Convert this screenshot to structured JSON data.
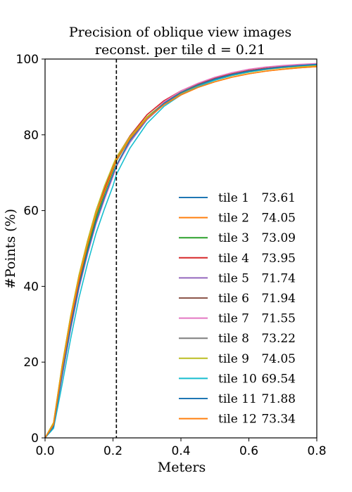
{
  "chart_data": {
    "type": "line",
    "title_line1": "Precision of oblique view images",
    "title_line2": "reconst. per tile d = 0.21",
    "xlabel": "Meters",
    "ylabel": "#Points (%)",
    "xlim": [
      0.0,
      0.8
    ],
    "ylim": [
      0,
      100
    ],
    "x_ticks": [
      {
        "value": 0.0,
        "label": "0.0"
      },
      {
        "value": 0.2,
        "label": "0.2"
      },
      {
        "value": 0.4,
        "label": "0.4"
      },
      {
        "value": 0.6,
        "label": "0.6"
      },
      {
        "value": 0.8,
        "label": "0.8"
      }
    ],
    "y_ticks": [
      {
        "value": 0,
        "label": "0"
      },
      {
        "value": 20,
        "label": "20"
      },
      {
        "value": 40,
        "label": "40"
      },
      {
        "value": 60,
        "label": "60"
      },
      {
        "value": 80,
        "label": "80"
      },
      {
        "value": 100,
        "label": "100"
      }
    ],
    "threshold_x": 0.21,
    "grid": false,
    "legend_position": "lower-right",
    "x": [
      0.0,
      0.025,
      0.05,
      0.075,
      0.1,
      0.125,
      0.15,
      0.175,
      0.2,
      0.21,
      0.25,
      0.3,
      0.35,
      0.4,
      0.45,
      0.5,
      0.55,
      0.6,
      0.65,
      0.7,
      0.75,
      0.8
    ],
    "series": [
      {
        "name": "tile 1",
        "score": "73.61",
        "color": "#1f77b4",
        "values": [
          0,
          3,
          17,
          30,
          41,
          50,
          58,
          65,
          71,
          73.61,
          79,
          84.5,
          88.3,
          91,
          93,
          94.6,
          95.8,
          96.7,
          97.3,
          97.8,
          98.1,
          98.4
        ]
      },
      {
        "name": "tile 2",
        "score": "74.05",
        "color": "#ff7f0e",
        "values": [
          0,
          4,
          19,
          32,
          43,
          52,
          60,
          66,
          72,
          74.05,
          79.5,
          84.5,
          88,
          90.5,
          92.5,
          94,
          95.2,
          96.1,
          96.8,
          97.3,
          97.7,
          98.0
        ]
      },
      {
        "name": "tile 3",
        "score": "73.09",
        "color": "#2ca02c",
        "values": [
          0,
          3,
          17,
          30,
          41,
          50,
          58,
          64.5,
          70.5,
          73.09,
          79,
          84.7,
          88.5,
          91.2,
          93.2,
          94.8,
          96,
          96.9,
          97.5,
          98,
          98.3,
          98.6
        ]
      },
      {
        "name": "tile 4",
        "score": "73.95",
        "color": "#d62728",
        "values": [
          0,
          3,
          17,
          30,
          41.5,
          51,
          59,
          65.5,
          71.5,
          73.95,
          79.7,
          85.3,
          89,
          91.6,
          93.5,
          95,
          96.1,
          97,
          97.6,
          98.1,
          98.4,
          98.6
        ]
      },
      {
        "name": "tile 5",
        "score": "71.74",
        "color": "#9467bd",
        "values": [
          0,
          3,
          16,
          28.5,
          39.5,
          48.5,
          56.5,
          63,
          69,
          71.74,
          78,
          84,
          88,
          90.8,
          92.9,
          94.5,
          95.8,
          96.8,
          97.5,
          98,
          98.4,
          98.7
        ]
      },
      {
        "name": "tile 6",
        "score": "71.94",
        "color": "#8c564b",
        "values": [
          0,
          3,
          16.5,
          29,
          40,
          49,
          57,
          63.5,
          69.5,
          71.94,
          78.5,
          84.5,
          88.5,
          91.2,
          93.2,
          94.8,
          96,
          96.9,
          97.5,
          98,
          98.3,
          98.6
        ]
      },
      {
        "name": "tile 7",
        "score": "71.55",
        "color": "#e377c2",
        "values": [
          0,
          3,
          16,
          28.5,
          39.5,
          48.5,
          56.5,
          63,
          69,
          71.55,
          78.3,
          84.5,
          88.7,
          91.6,
          93.6,
          95.2,
          96.4,
          97.3,
          97.9,
          98.3,
          98.6,
          98.8
        ]
      },
      {
        "name": "tile 8",
        "score": "73.22",
        "color": "#7f7f7f",
        "values": [
          0,
          3.5,
          18,
          31,
          42,
          51,
          59,
          65,
          71,
          73.22,
          79,
          84.5,
          88.3,
          91,
          93,
          94.6,
          95.8,
          96.7,
          97.4,
          97.9,
          98.2,
          98.5
        ]
      },
      {
        "name": "tile 9",
        "score": "74.05",
        "color": "#bcbd22",
        "values": [
          0,
          4,
          19,
          32,
          43,
          52,
          60,
          66.5,
          72,
          74.05,
          79.5,
          84.7,
          88.3,
          90.9,
          92.9,
          94.4,
          95.6,
          96.5,
          97.2,
          97.7,
          98.0,
          98.3
        ]
      },
      {
        "name": "tile 10",
        "score": "69.54",
        "color": "#17becf",
        "values": [
          0,
          2.5,
          14,
          26,
          37,
          46,
          54,
          60.5,
          66.5,
          69.54,
          76.5,
          83,
          87.5,
          90.5,
          92.7,
          94.4,
          95.7,
          96.6,
          97.3,
          97.8,
          98.2,
          98.5
        ]
      },
      {
        "name": "tile 11",
        "score": "71.88",
        "color": "#1f77b4",
        "values": [
          0,
          3,
          16.5,
          29,
          40,
          49,
          57,
          63.5,
          69.5,
          71.88,
          78.5,
          84.3,
          88.3,
          91.1,
          93.1,
          94.7,
          95.9,
          96.8,
          97.4,
          97.9,
          98.3,
          98.6
        ]
      },
      {
        "name": "tile 12",
        "score": "73.34",
        "color": "#ff7f0e",
        "values": [
          0,
          3.5,
          18,
          31,
          42,
          51,
          59,
          65,
          71,
          73.34,
          79,
          84.3,
          87.9,
          90.5,
          92.5,
          94,
          95.2,
          96.1,
          96.8,
          97.3,
          97.7,
          98.0
        ]
      }
    ]
  }
}
